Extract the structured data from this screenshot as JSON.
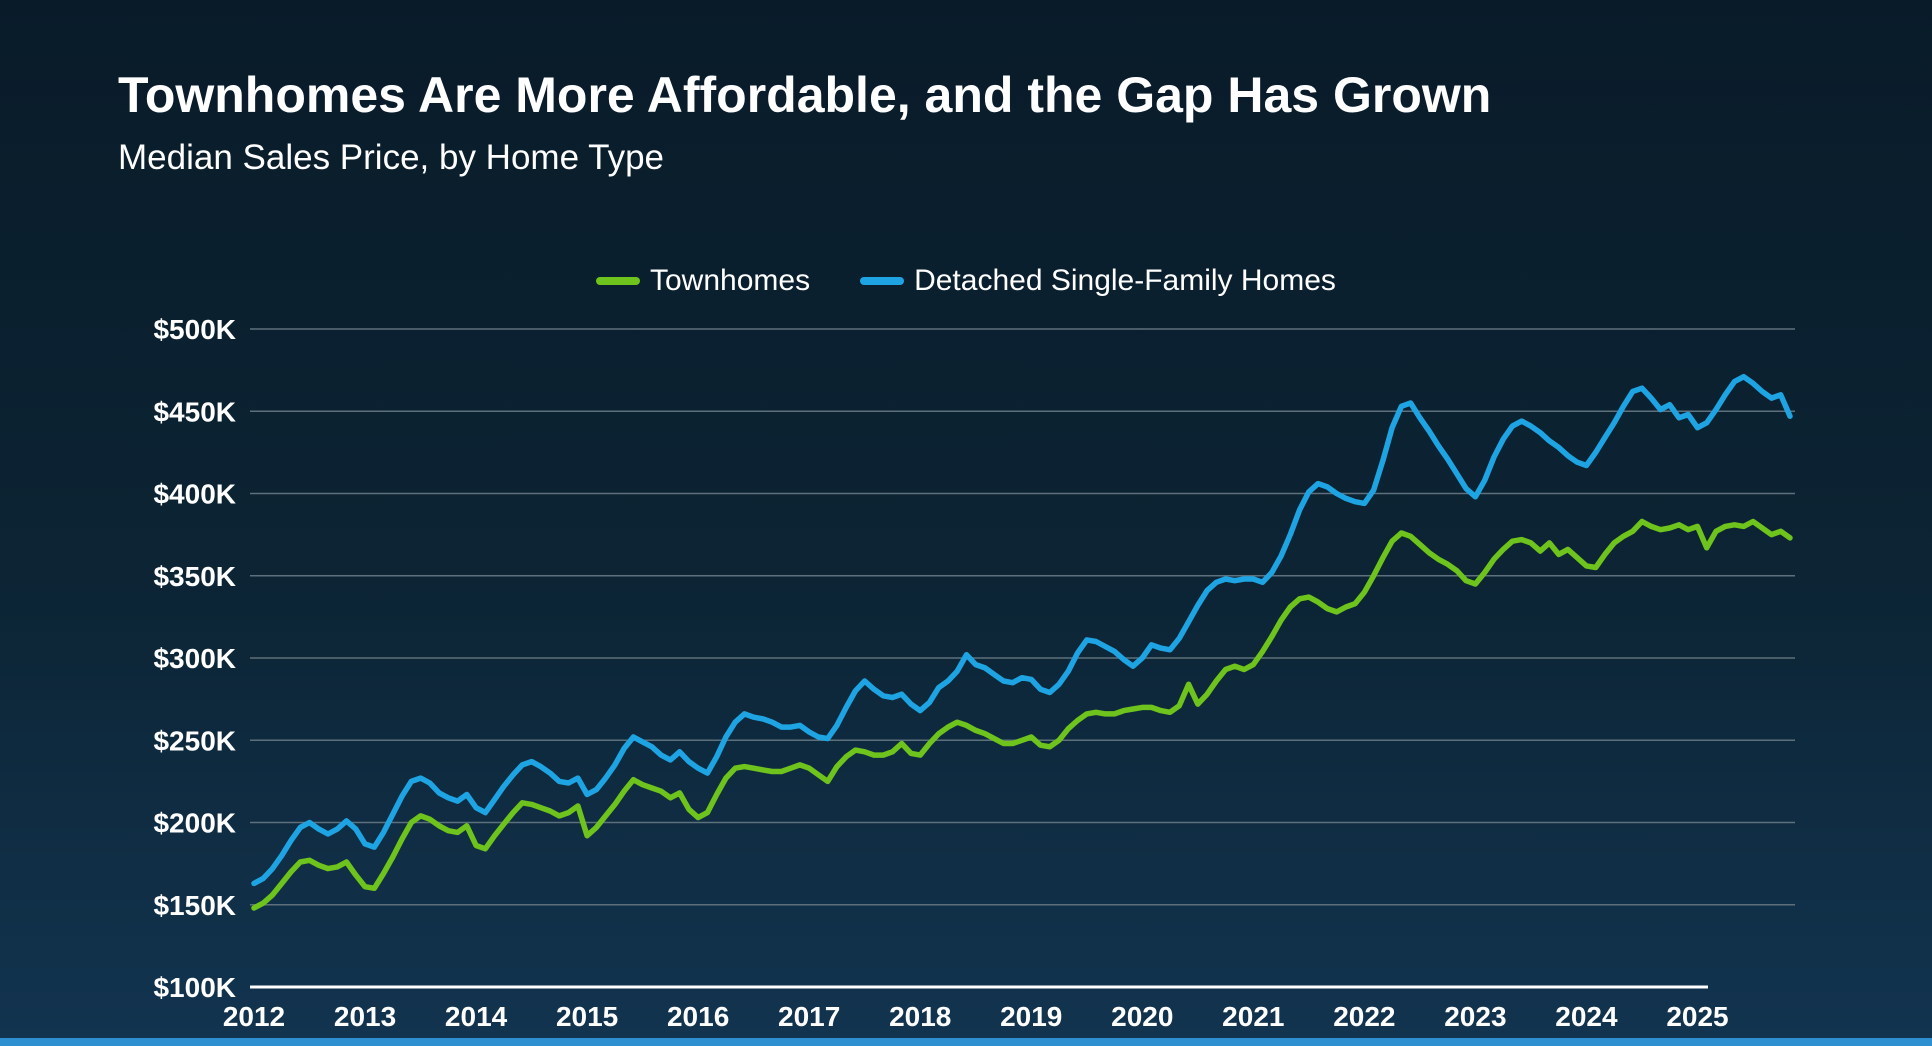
{
  "page": {
    "title": "Townhomes Are More Affordable, and the Gap Has Grown",
    "subtitle": "Median Sales Price, by Home Type"
  },
  "colors": {
    "background_top": "#091b29",
    "background_mid": "#0c2434",
    "background_bottom": "#123450",
    "grid": "#5e707b",
    "axis": "#ffffff",
    "text": "#ffffff",
    "accent_bar": "#2e8fd1",
    "townhomes_green": "#6ec31c",
    "detached_blue": "#1ea4e2"
  },
  "legend": {
    "items": [
      {
        "label": "Townhomes",
        "color": "#6ec31c"
      },
      {
        "label": "Detached Single-Family Homes",
        "color": "#1ea4e2"
      }
    ]
  },
  "chart_data": {
    "type": "line",
    "title": "Townhomes Are More Affordable, and the Gap Has Grown",
    "subtitle": "Median Sales Price, by Home Type",
    "frequency": "monthly",
    "x_start": "2012-01",
    "x_end": "2025-11",
    "unit": "USD thousands",
    "ylim": [
      100,
      500
    ],
    "grid": true,
    "legend_position": "top",
    "x_ticks": [
      "2012",
      "2013",
      "2014",
      "2015",
      "2016",
      "2017",
      "2018",
      "2019",
      "2020",
      "2021",
      "2022",
      "2023",
      "2024",
      "2025"
    ],
    "y_ticks": [
      {
        "label": "$100K",
        "value": 100,
        "axis": true
      },
      {
        "label": "$150K",
        "value": 150
      },
      {
        "label": "$200K",
        "value": 200
      },
      {
        "label": "$250K",
        "value": 250
      },
      {
        "label": "$300K",
        "value": 300
      },
      {
        "label": "$350K",
        "value": 350
      },
      {
        "label": "$400K",
        "value": 400
      },
      {
        "label": "$450K",
        "value": 450
      },
      {
        "label": "$500K",
        "value": 500
      }
    ],
    "series": [
      {
        "name": "Townhomes",
        "color": "#6ec31c",
        "values": [
          148,
          151,
          156,
          163,
          170,
          176,
          177,
          174,
          172,
          173,
          176,
          168,
          161,
          160,
          169,
          179,
          190,
          200,
          204,
          202,
          198,
          195,
          194,
          198,
          186,
          184,
          192,
          199,
          206,
          212,
          211,
          209,
          207,
          204,
          206,
          210,
          192,
          197,
          204,
          211,
          219,
          226,
          223,
          221,
          219,
          215,
          218,
          208,
          203,
          206,
          217,
          227,
          233,
          234,
          233,
          232,
          231,
          231,
          233,
          235,
          233,
          229,
          225,
          234,
          240,
          244,
          243,
          241,
          241,
          243,
          248,
          242,
          241,
          248,
          254,
          258,
          261,
          259,
          256,
          254,
          251,
          248,
          248,
          250,
          252,
          247,
          246,
          250,
          257,
          262,
          266,
          267,
          266,
          266,
          268,
          269,
          270,
          270,
          268,
          267,
          271,
          284,
          272,
          278,
          286,
          293,
          295,
          293,
          296,
          304,
          313,
          323,
          331,
          336,
          337,
          334,
          330,
          328,
          331,
          333,
          340,
          350,
          361,
          371,
          376,
          374,
          369,
          364,
          360,
          357,
          353,
          347,
          345,
          352,
          360,
          366,
          371,
          372,
          370,
          365,
          370,
          363,
          366,
          361,
          356,
          355,
          363,
          370,
          374,
          377,
          383,
          380,
          378,
          379,
          381,
          378,
          380,
          367,
          377,
          380,
          381,
          380,
          383,
          379,
          375,
          377,
          373
        ]
      },
      {
        "name": "Detached Single-Family Homes",
        "color": "#1ea4e2",
        "values": [
          163,
          166,
          172,
          180,
          189,
          197,
          200,
          196,
          193,
          196,
          201,
          196,
          187,
          185,
          194,
          205,
          216,
          225,
          227,
          224,
          218,
          215,
          213,
          217,
          209,
          206,
          214,
          222,
          229,
          235,
          237,
          234,
          230,
          225,
          224,
          227,
          217,
          220,
          227,
          235,
          245,
          252,
          249,
          246,
          241,
          238,
          243,
          237,
          233,
          230,
          240,
          252,
          261,
          266,
          264,
          263,
          261,
          258,
          258,
          259,
          255,
          252,
          251,
          259,
          270,
          280,
          286,
          281,
          277,
          276,
          278,
          272,
          268,
          273,
          282,
          286,
          292,
          302,
          296,
          294,
          290,
          286,
          285,
          288,
          287,
          281,
          279,
          284,
          292,
          303,
          311,
          310,
          307,
          304,
          299,
          295,
          300,
          308,
          306,
          305,
          312,
          322,
          332,
          341,
          346,
          348,
          347,
          348,
          348,
          346,
          352,
          362,
          375,
          390,
          401,
          406,
          404,
          400,
          397,
          395,
          394,
          402,
          420,
          440,
          453,
          455,
          446,
          438,
          429,
          421,
          412,
          403,
          398,
          408,
          422,
          433,
          441,
          444,
          441,
          437,
          432,
          428,
          423,
          419,
          417,
          425,
          434,
          443,
          453,
          462,
          464,
          458,
          451,
          454,
          446,
          448,
          440,
          443,
          451,
          460,
          468,
          471,
          467,
          462,
          458,
          460,
          447
        ]
      }
    ]
  }
}
